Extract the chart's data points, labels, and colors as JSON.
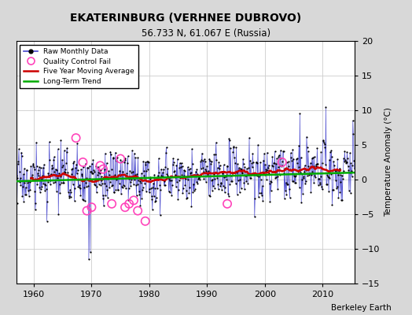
{
  "title": "EKATERINBURG (VERHNEE DUBROVO)",
  "subtitle": "56.733 N, 61.067 E (Russia)",
  "ylabel": "Temperature Anomaly (°C)",
  "credit": "Berkeley Earth",
  "xlim": [
    1957.0,
    2015.5
  ],
  "ylim": [
    -15,
    20
  ],
  "yticks": [
    -15,
    -10,
    -5,
    0,
    5,
    10,
    15,
    20
  ],
  "xticks": [
    1960,
    1970,
    1980,
    1990,
    2000,
    2010
  ],
  "fig_bg": "#d8d8d8",
  "plot_bg": "#ffffff",
  "raw_color": "#4444cc",
  "ma_color": "#cc0000",
  "trend_color": "#00aa00",
  "qc_color": "#ff44bb",
  "grid_color": "#cccccc",
  "seed": 17
}
